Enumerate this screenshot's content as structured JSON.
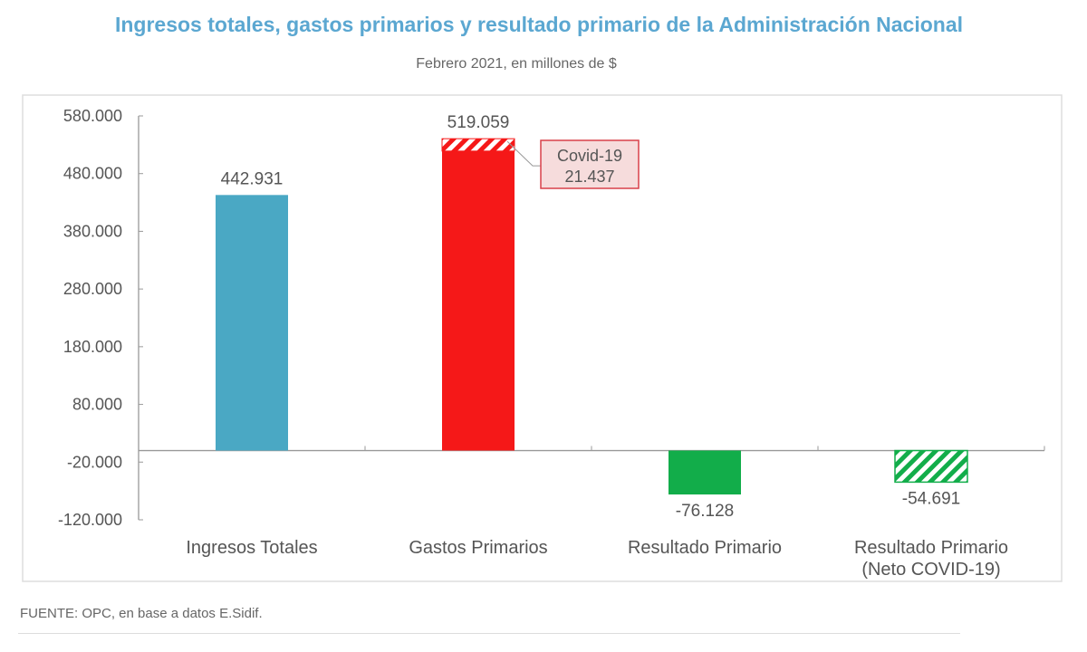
{
  "chart_data": {
    "type": "bar",
    "title": "Ingresos totales, gastos primarios y resultado primario de la Administración Nacional",
    "subtitle": "Febrero 2021, en millones de $",
    "categories": [
      "Ingresos Totales",
      "Gastos Primarios",
      "Resultado Primario",
      "Resultado Primario (Neto COVID-19)"
    ],
    "values": [
      442931,
      519059,
      -76128,
      -54691
    ],
    "data_labels": [
      "442.931",
      "519.059",
      "-76.128",
      "-54.691"
    ],
    "colors": [
      "#4aa8c4",
      "#f51818",
      "#12ad4a",
      "#12ad4a"
    ],
    "hatched": [
      false,
      false,
      false,
      true
    ],
    "stacked_segment": {
      "category": "Gastos Primarios",
      "label": "Covid-19",
      "value": 21437,
      "value_label": "21.437",
      "hatched": true
    },
    "ylim": [
      -120000,
      580000
    ],
    "yticks": [
      580000,
      480000,
      380000,
      280000,
      180000,
      80000,
      -20000,
      -120000
    ],
    "ytick_labels": [
      "580.000",
      "480.000",
      "380.000",
      "280.000",
      "180.000",
      "80.000",
      "-20.000",
      "-120.000"
    ],
    "grid": false,
    "xlabel": "",
    "ylabel": ""
  },
  "source": "FUENTE: OPC, en base a datos E.Sidif."
}
